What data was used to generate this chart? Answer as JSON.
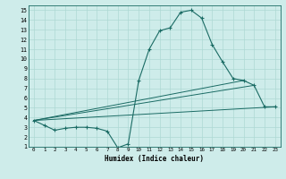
{
  "xlabel": "Humidex (Indice chaleur)",
  "bg_color": "#ceecea",
  "grid_color": "#aed8d4",
  "line_color": "#1a6b64",
  "xlim": [
    -0.5,
    23.5
  ],
  "ylim": [
    1,
    15.5
  ],
  "xticks": [
    0,
    1,
    2,
    3,
    4,
    5,
    6,
    7,
    8,
    9,
    10,
    11,
    12,
    13,
    14,
    15,
    16,
    17,
    18,
    19,
    20,
    21,
    22,
    23
  ],
  "yticks": [
    1,
    2,
    3,
    4,
    5,
    6,
    7,
    8,
    9,
    10,
    11,
    12,
    13,
    14,
    15
  ],
  "curve1_x": [
    0,
    1,
    2,
    3,
    4,
    5,
    6,
    7,
    8,
    9,
    10,
    11,
    12,
    13,
    14,
    15,
    16,
    17,
    18,
    19,
    20,
    21,
    22,
    23
  ],
  "curve1_y": [
    3.7,
    3.2,
    2.7,
    2.9,
    3.0,
    3.0,
    2.9,
    2.6,
    0.9,
    1.3,
    7.8,
    11.0,
    12.9,
    13.2,
    14.8,
    15.0,
    14.2,
    11.5,
    9.7,
    8.0,
    7.8,
    7.3,
    5.1,
    5.1
  ],
  "curve2_x": [
    0,
    23
  ],
  "curve2_y": [
    3.7,
    5.1
  ],
  "curve3_x": [
    0,
    21
  ],
  "curve3_y": [
    3.7,
    7.3
  ],
  "curve4_x": [
    0,
    20
  ],
  "curve4_y": [
    3.7,
    7.8
  ]
}
